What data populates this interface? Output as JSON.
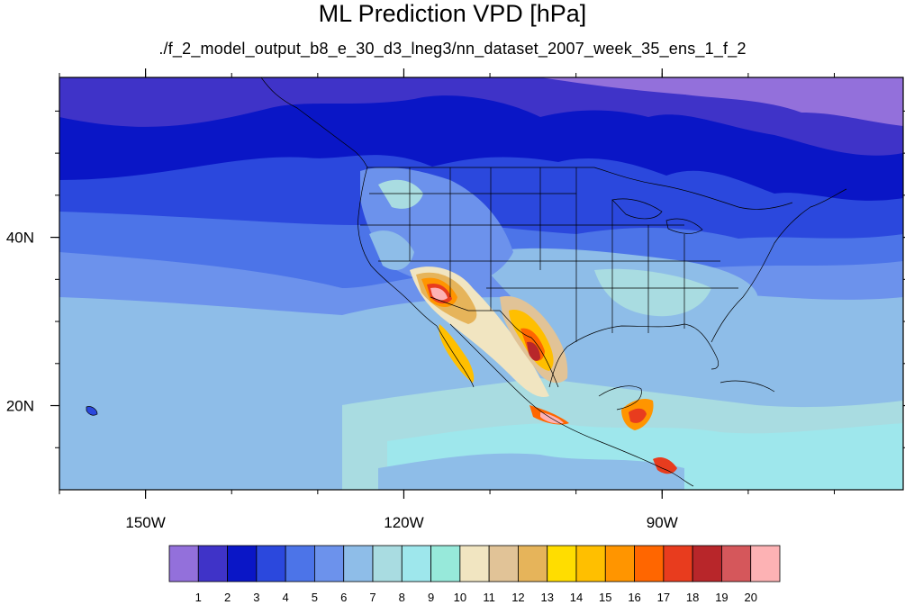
{
  "title": "ML Prediction VPD [hPa]",
  "subtitle": "./f_2_model_output_b8_e_30_d3_lneg3/nn_dataset_2007_week_35_ens_1_f_2",
  "map": {
    "projection": "cylindrical-equidistant",
    "lon_range": [
      -160,
      -62
    ],
    "lat_range": [
      10,
      59
    ],
    "lon_ticks": [
      {
        "value": -150,
        "label": "150W"
      },
      {
        "value": -120,
        "label": "120W"
      },
      {
        "value": -90,
        "label": "90W"
      }
    ],
    "lat_ticks": [
      {
        "value": 40,
        "label": "40N"
      },
      {
        "value": 20,
        "label": "20N"
      }
    ],
    "features": [
      "coastlines",
      "us-state-borders",
      "national-borders"
    ]
  },
  "colorbar": {
    "labels": [
      "1",
      "2",
      "3",
      "4",
      "5",
      "6",
      "7",
      "8",
      "9",
      "10",
      "11",
      "12",
      "13",
      "14",
      "15",
      "16",
      "17",
      "18",
      "19",
      "20"
    ],
    "colors": [
      "#9370DB",
      "#3F33C8",
      "#0A16C6",
      "#2B48DD",
      "#4C74E8",
      "#6C92EC",
      "#8EBDE8",
      "#A9DCE1",
      "#9EE7EC",
      "#97E9DA",
      "#F1E5C1",
      "#E1C397",
      "#E6B45A",
      "#FFDD00",
      "#FFBF00",
      "#FF9500",
      "#FF6600",
      "#E83C1E",
      "#B8262A",
      "#D5575B",
      "#FDB2B4"
    ]
  }
}
